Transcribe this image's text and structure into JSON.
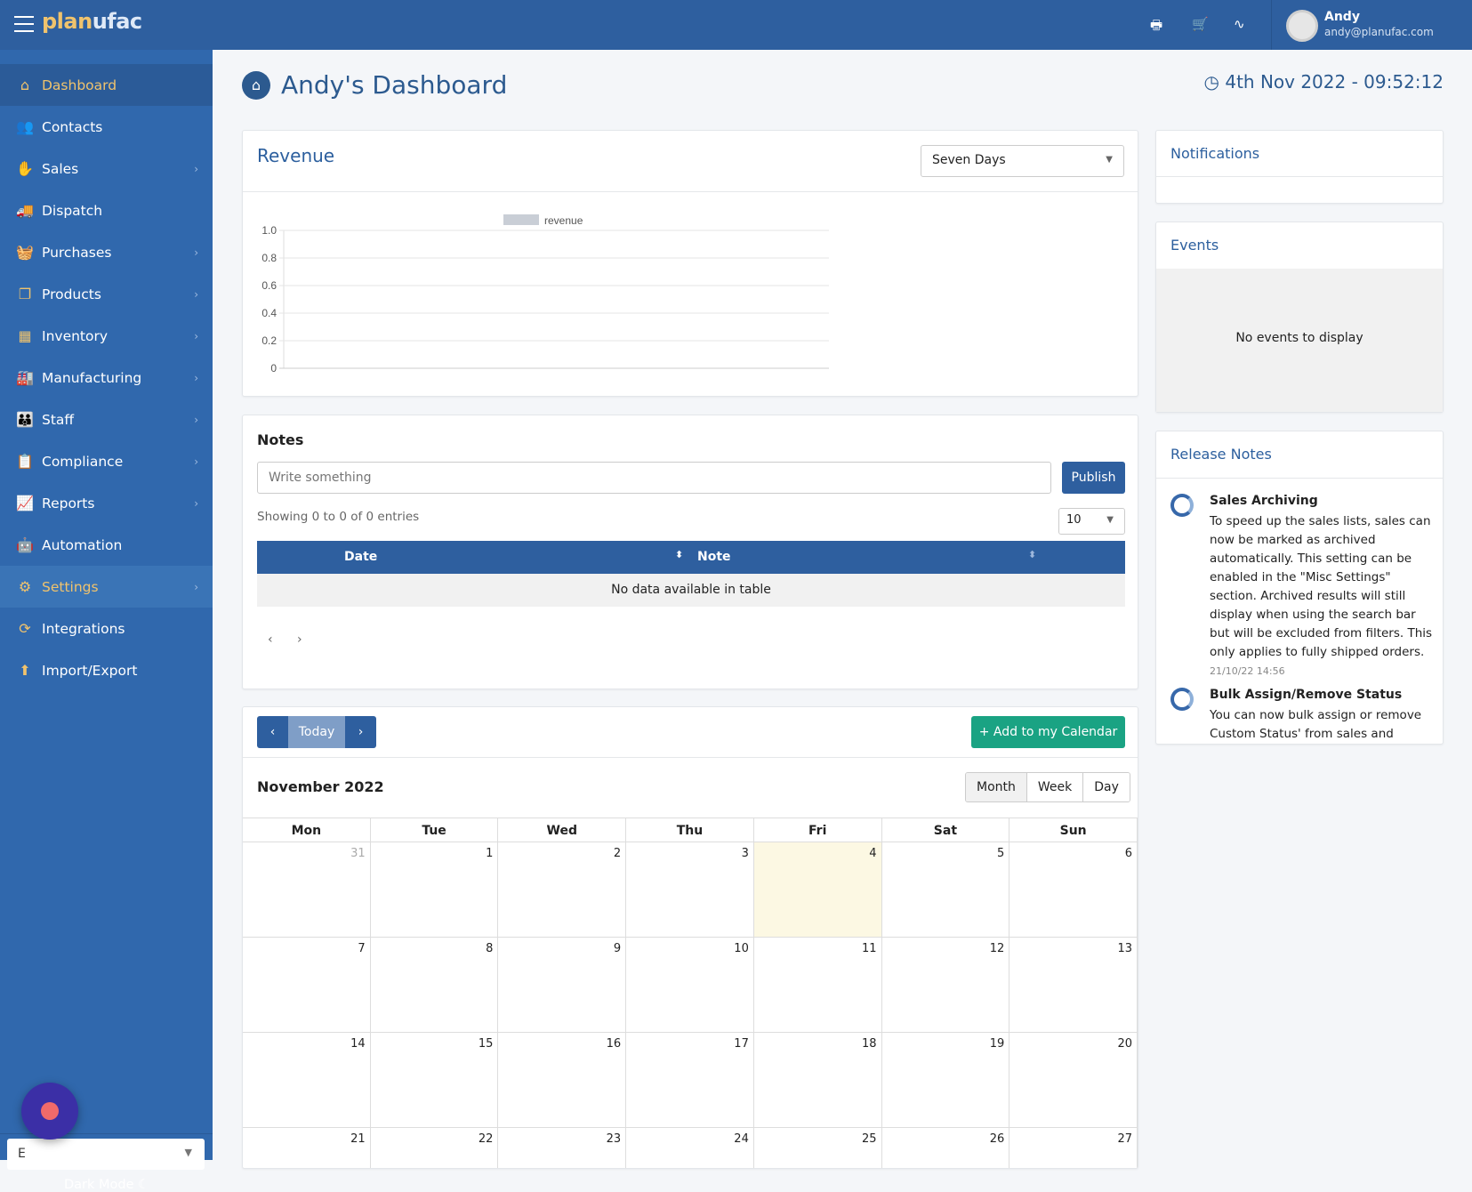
{
  "topbar": {
    "logo_a": "plan",
    "logo_b": "ufac",
    "user_name": "Andy",
    "user_email": "andy@planufac.com",
    "icons": [
      "print-icon",
      "cart-icon",
      "heartbeat-icon"
    ]
  },
  "sidebar": {
    "items": [
      {
        "label": "Dashboard",
        "icon": "home-icon",
        "glyph": "⌂",
        "chevron": false,
        "state": "active"
      },
      {
        "label": "Contacts",
        "icon": "users-icon",
        "glyph": "👥",
        "chevron": false
      },
      {
        "label": "Sales",
        "icon": "hand-coin-icon",
        "glyph": "✋",
        "chevron": true
      },
      {
        "label": "Dispatch",
        "icon": "truck-icon",
        "glyph": "🚚",
        "chevron": false
      },
      {
        "label": "Purchases",
        "icon": "basket-icon",
        "glyph": "🧺",
        "chevron": true
      },
      {
        "label": "Products",
        "icon": "copy-icon",
        "glyph": "❐",
        "chevron": true
      },
      {
        "label": "Inventory",
        "icon": "boxes-icon",
        "glyph": "▦",
        "chevron": true
      },
      {
        "label": "Manufacturing",
        "icon": "factory-icon",
        "glyph": "🏭",
        "chevron": true
      },
      {
        "label": "Staff",
        "icon": "people-icon",
        "glyph": "👪",
        "chevron": true
      },
      {
        "label": "Compliance",
        "icon": "clipboard-icon",
        "glyph": "📋",
        "chevron": true
      },
      {
        "label": "Reports",
        "icon": "chart-line-icon",
        "glyph": "📈",
        "chevron": true
      },
      {
        "label": "Automation",
        "icon": "robot-icon",
        "glyph": "🤖",
        "chevron": false
      },
      {
        "label": "Settings",
        "icon": "gear-icon",
        "glyph": "⚙",
        "chevron": true,
        "state": "hover"
      },
      {
        "label": "Integrations",
        "icon": "sync-icon",
        "glyph": "⟳",
        "chevron": false
      },
      {
        "label": "Import/Export",
        "icon": "upload-icon",
        "glyph": "⬆",
        "chevron": false
      }
    ],
    "language_value": "E",
    "dark_mode_label": "Dark Mode"
  },
  "page": {
    "title": "Andy's Dashboard",
    "datetime": "4th Nov 2022 - 09:52:12"
  },
  "revenue": {
    "title": "Revenue",
    "range_value": "Seven Days"
  },
  "chart_data": {
    "type": "bar",
    "legend": [
      "revenue"
    ],
    "series": [
      {
        "name": "revenue",
        "values": []
      }
    ],
    "yticks": [
      "0",
      "0.2",
      "0.4",
      "0.6",
      "0.8",
      "1.0"
    ],
    "ylim": [
      0,
      1
    ],
    "grid": true,
    "legend_placement": "top",
    "colors": {
      "revenue": "#c9ced6"
    }
  },
  "notes": {
    "title": "Notes",
    "placeholder": "Write something",
    "publish_label": "Publish",
    "showing": "Showing 0 to 0 of 0 entries",
    "page_size": "10",
    "columns": [
      "Date",
      "Note"
    ],
    "empty": "No data available in table"
  },
  "calendar": {
    "today_label": "Today",
    "add_label": "Add to my Calendar",
    "month_title": "November 2022",
    "views": [
      "Month",
      "Week",
      "Day"
    ],
    "active_view": "Month",
    "days": [
      "Mon",
      "Tue",
      "Wed",
      "Thu",
      "Fri",
      "Sat",
      "Sun"
    ],
    "weeks": [
      [
        "31",
        "1",
        "2",
        "3",
        "4",
        "5",
        "6"
      ],
      [
        "7",
        "8",
        "9",
        "10",
        "11",
        "12",
        "13"
      ],
      [
        "14",
        "15",
        "16",
        "17",
        "18",
        "19",
        "20"
      ],
      [
        "21",
        "22",
        "23",
        "24",
        "25",
        "26",
        "27"
      ]
    ],
    "today": "4",
    "other_month": [
      "31"
    ]
  },
  "notifications": {
    "title": "Notifications"
  },
  "events": {
    "title": "Events",
    "empty": "No events to display"
  },
  "release_notes": {
    "title": "Release Notes",
    "items": [
      {
        "title": "Sales Archiving",
        "body": "To speed up the sales lists, sales can now be marked as archived automatically. This setting can be enabled in the \"Misc Settings\" section. Archived results will still display when using the search bar but will be excluded from filters. This only applies to fully shipped orders.",
        "date": "21/10/22 14:56"
      },
      {
        "title": "Bulk Assign/Remove Status",
        "body": "You can now bulk assign or remove Custom Status' from sales and"
      }
    ]
  }
}
